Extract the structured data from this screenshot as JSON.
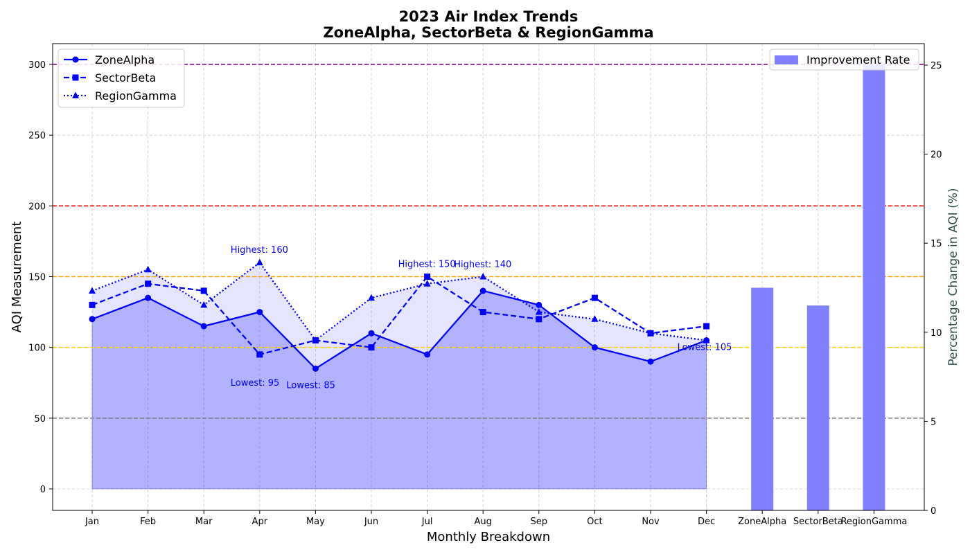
{
  "chart_data": {
    "type": "line",
    "title": "2023 Air Index Trends",
    "subtitle": "ZoneAlpha, SectorBeta & RegionGamma",
    "xlabel": "Monthly Breakdown",
    "ylabel": "AQI Measurement",
    "ylabel_right": "Percentage Change in AQI (%)",
    "ylim": [
      -15,
      315
    ],
    "yticks": [
      0,
      50,
      100,
      150,
      200,
      250,
      300
    ],
    "ylim_right": [
      0,
      26.3
    ],
    "yticks_right": [
      0,
      5,
      10,
      15,
      20,
      25
    ],
    "grid": true,
    "categories": [
      "Jan",
      "Feb",
      "Mar",
      "Apr",
      "May",
      "Jun",
      "Jul",
      "Aug",
      "Sep",
      "Oct",
      "Nov",
      "Dec"
    ],
    "series": [
      {
        "name": "ZoneAlpha",
        "marker": "circle",
        "linestyle": "solid",
        "color": "#0000ff",
        "values": [
          120,
          135,
          115,
          125,
          85,
          110,
          95,
          140,
          130,
          100,
          90,
          105
        ]
      },
      {
        "name": "SectorBeta",
        "marker": "square",
        "linestyle": "dashed",
        "color": "#0000ff",
        "values": [
          130,
          145,
          140,
          95,
          105,
          100,
          150,
          125,
          120,
          135,
          110,
          115
        ]
      },
      {
        "name": "RegionGamma",
        "marker": "triangle",
        "linestyle": "dotted",
        "color": "#0000ff",
        "values": [
          140,
          155,
          130,
          160,
          105,
          135,
          145,
          150,
          125,
          120,
          110,
          105
        ]
      }
    ],
    "bars": {
      "name": "Improvement Rate",
      "color": "#8080ff",
      "categories": [
        "ZoneAlpha",
        "SectorBeta",
        "RegionGamma"
      ],
      "values": [
        12.5,
        11.5,
        25.0
      ]
    },
    "reference_lines": [
      {
        "value": 50,
        "color": "#808080"
      },
      {
        "value": 100,
        "color": "#ffd700"
      },
      {
        "value": 150,
        "color": "#ffa500"
      },
      {
        "value": 200,
        "color": "#ff0000"
      },
      {
        "value": 300,
        "color": "#800080"
      }
    ],
    "annotations": [
      {
        "text": "Highest: 160",
        "month": "Apr",
        "value": 160
      },
      {
        "text": "Lowest: 95",
        "month": "Apr",
        "value": 95
      },
      {
        "text": "Lowest: 85",
        "month": "May",
        "value": 85
      },
      {
        "text": "Highest: 150",
        "month": "Jul",
        "value": 150
      },
      {
        "text": "Highest: 140",
        "month": "Aug",
        "value": 140
      },
      {
        "text": "Lowest: 105",
        "month": "Dec",
        "value": 105
      }
    ],
    "legend_lines_placement": "upper-left",
    "legend_bars_placement": "upper-right"
  }
}
